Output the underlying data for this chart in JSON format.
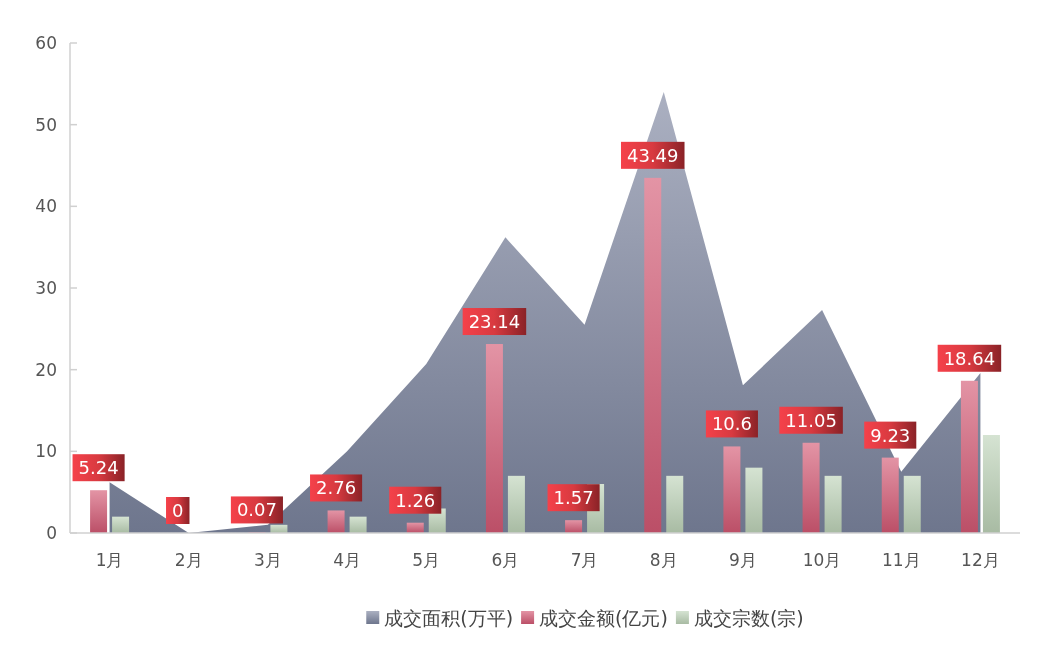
{
  "chart_data": {
    "type": "bar",
    "categories": [
      "1月",
      "2月",
      "3月",
      "4月",
      "5月",
      "6月",
      "7月",
      "8月",
      "9月",
      "10月",
      "11月",
      "12月"
    ],
    "series": [
      {
        "name": "成交面积(万平)",
        "type": "area",
        "color": "#7d86a0",
        "values": [
          6.2,
          0,
          1,
          10,
          20.7,
          36.2,
          25.5,
          54,
          18.1,
          27.3,
          7.5,
          19.6
        ]
      },
      {
        "name": "成交金额(亿元)",
        "color": "#d45a75",
        "values": [
          5.24,
          0,
          0.07,
          2.76,
          1.26,
          23.14,
          1.57,
          43.49,
          10.6,
          11.05,
          9.23,
          18.64
        ],
        "value_labels": [
          "5.24",
          "0",
          "0.07",
          "2.76",
          "1.26",
          "23.14",
          "1.57",
          "43.49",
          "10.6",
          "11.05",
          "9.23",
          "18.64"
        ]
      },
      {
        "name": "成交宗数(宗)",
        "color": "#bfd4b9",
        "values": [
          2,
          0,
          1,
          2,
          3,
          7,
          6,
          7,
          8,
          7,
          7,
          12
        ]
      }
    ],
    "ylim": [
      0,
      60
    ],
    "yticks": [
      0,
      10,
      20,
      30,
      40,
      50,
      60
    ],
    "grid": false,
    "legend": "bottom"
  }
}
